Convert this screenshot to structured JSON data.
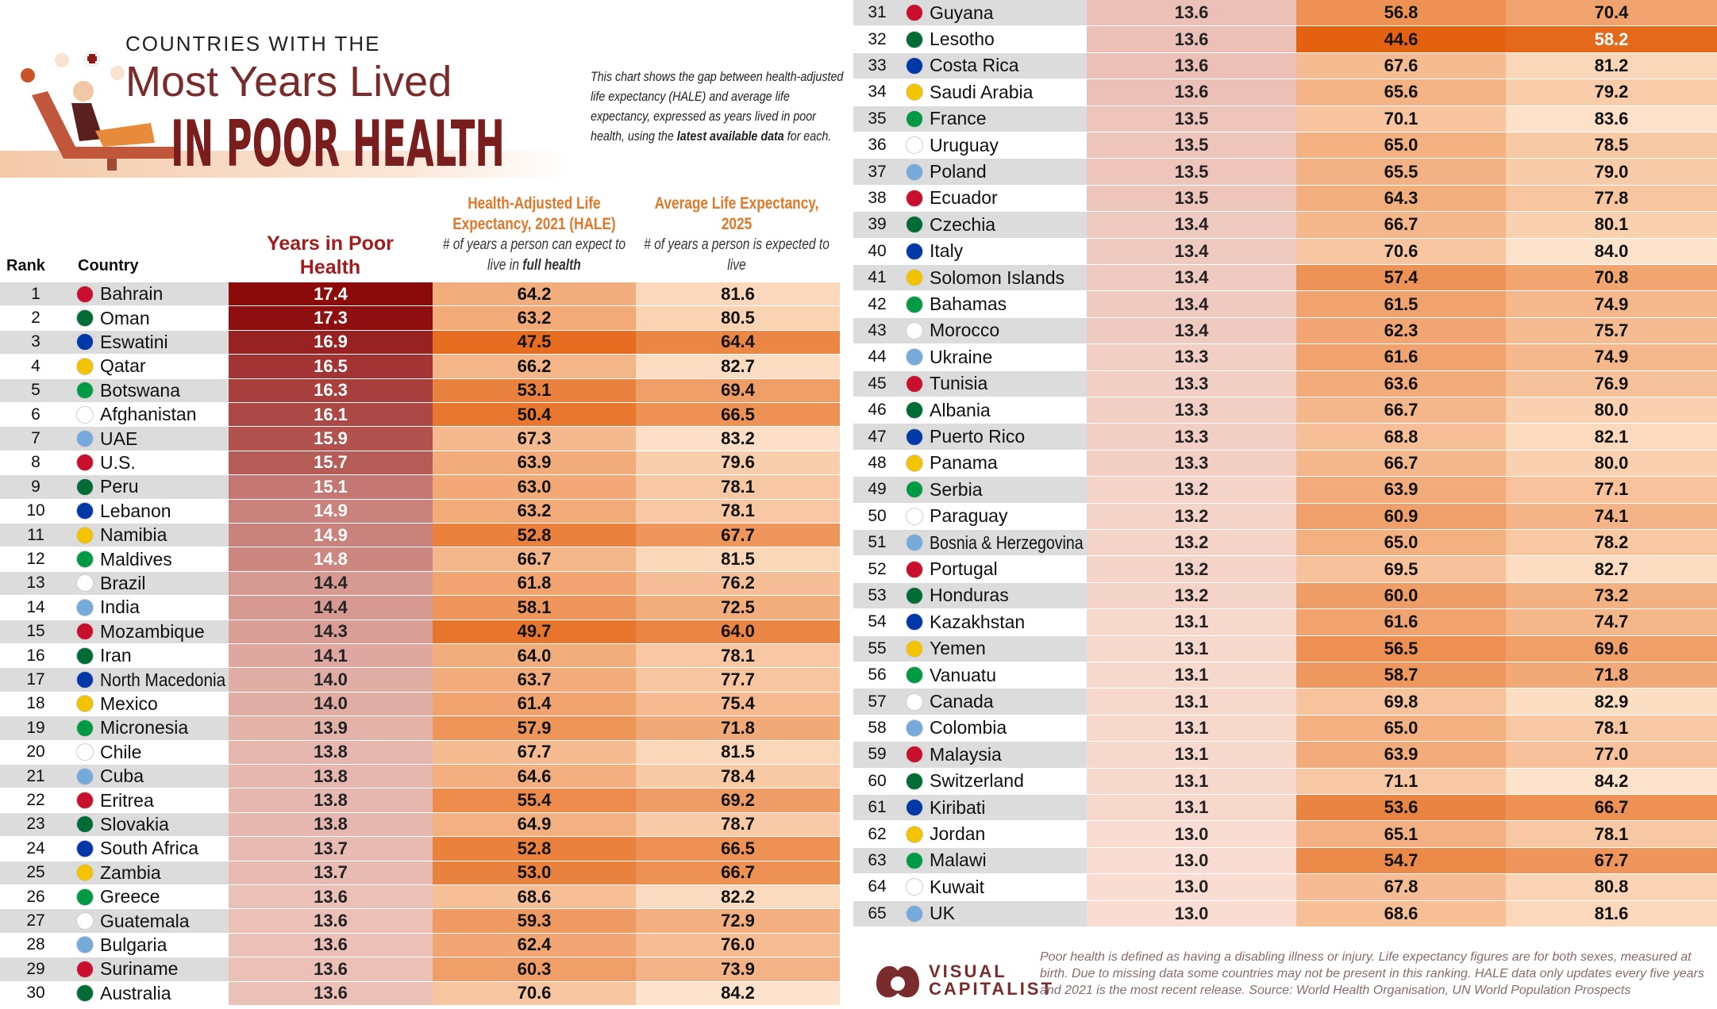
{
  "header": {
    "pretitle": "COUNTRIES WITH THE",
    "title_line1": "Most Years Lived",
    "title_line2": "IN POOR HEALTH",
    "intro_a": "This chart shows the gap between health-adjusted life expectancy (HALE) and average life expectancy, expressed as years lived in poor health, using the ",
    "intro_bold": "latest available data",
    "intro_b": " for each."
  },
  "chart_data": {
    "type": "table",
    "title": "Countries With the Most Years Lived in Poor Health",
    "columns": {
      "rank": "Rank",
      "country": "Country",
      "poor": "Years in Poor Health",
      "hale": "Health-Adjusted Life Expectancy, 2021 (HALE)",
      "hale_sub_a": "# of years a person can expect to live in ",
      "hale_sub_bold": "full health",
      "avg": "Average Life Expectancy, 2025",
      "avg_sub": "# of years a person is expected to live"
    },
    "rows": [
      [
        1,
        "Bahrain",
        17.4,
        64.2,
        81.6
      ],
      [
        2,
        "Oman",
        17.3,
        63.2,
        80.5
      ],
      [
        3,
        "Eswatini",
        16.9,
        47.5,
        64.4
      ],
      [
        4,
        "Qatar",
        16.5,
        66.2,
        82.7
      ],
      [
        5,
        "Botswana",
        16.3,
        53.1,
        69.4
      ],
      [
        6,
        "Afghanistan",
        16.1,
        50.4,
        66.5
      ],
      [
        7,
        "UAE",
        15.9,
        67.3,
        83.2
      ],
      [
        8,
        "U.S.",
        15.7,
        63.9,
        79.6
      ],
      [
        9,
        "Peru",
        15.1,
        63.0,
        78.1
      ],
      [
        10,
        "Lebanon",
        14.9,
        63.2,
        78.1
      ],
      [
        11,
        "Namibia",
        14.9,
        52.8,
        67.7
      ],
      [
        12,
        "Maldives",
        14.8,
        66.7,
        81.5
      ],
      [
        13,
        "Brazil",
        14.4,
        61.8,
        76.2
      ],
      [
        14,
        "India",
        14.4,
        58.1,
        72.5
      ],
      [
        15,
        "Mozambique",
        14.3,
        49.7,
        64.0
      ],
      [
        16,
        "Iran",
        14.1,
        64.0,
        78.1
      ],
      [
        17,
        "North Macedonia",
        14.0,
        63.7,
        77.7
      ],
      [
        18,
        "Mexico",
        14.0,
        61.4,
        75.4
      ],
      [
        19,
        "Micronesia",
        13.9,
        57.9,
        71.8
      ],
      [
        20,
        "Chile",
        13.8,
        67.7,
        81.5
      ],
      [
        21,
        "Cuba",
        13.8,
        64.6,
        78.4
      ],
      [
        22,
        "Eritrea",
        13.8,
        55.4,
        69.2
      ],
      [
        23,
        "Slovakia",
        13.8,
        64.9,
        78.7
      ],
      [
        24,
        "South Africa",
        13.7,
        52.8,
        66.5
      ],
      [
        25,
        "Zambia",
        13.7,
        53.0,
        66.7
      ],
      [
        26,
        "Greece",
        13.6,
        68.6,
        82.2
      ],
      [
        27,
        "Guatemala",
        13.6,
        59.3,
        72.9
      ],
      [
        28,
        "Bulgaria",
        13.6,
        62.4,
        76.0
      ],
      [
        29,
        "Suriname",
        13.6,
        60.3,
        73.9
      ],
      [
        30,
        "Australia",
        13.6,
        70.6,
        84.2
      ],
      [
        31,
        "Guyana",
        13.6,
        56.8,
        70.4
      ],
      [
        32,
        "Lesotho",
        13.6,
        44.6,
        58.2
      ],
      [
        33,
        "Costa Rica",
        13.6,
        67.6,
        81.2
      ],
      [
        34,
        "Saudi Arabia",
        13.6,
        65.6,
        79.2
      ],
      [
        35,
        "France",
        13.5,
        70.1,
        83.6
      ],
      [
        36,
        "Uruguay",
        13.5,
        65.0,
        78.5
      ],
      [
        37,
        "Poland",
        13.5,
        65.5,
        79.0
      ],
      [
        38,
        "Ecuador",
        13.5,
        64.3,
        77.8
      ],
      [
        39,
        "Czechia",
        13.4,
        66.7,
        80.1
      ],
      [
        40,
        "Italy",
        13.4,
        70.6,
        84.0
      ],
      [
        41,
        "Solomon Islands",
        13.4,
        57.4,
        70.8
      ],
      [
        42,
        "Bahamas",
        13.4,
        61.5,
        74.9
      ],
      [
        43,
        "Morocco",
        13.4,
        62.3,
        75.7
      ],
      [
        44,
        "Ukraine",
        13.3,
        61.6,
        74.9
      ],
      [
        45,
        "Tunisia",
        13.3,
        63.6,
        76.9
      ],
      [
        46,
        "Albania",
        13.3,
        66.7,
        80.0
      ],
      [
        47,
        "Puerto Rico",
        13.3,
        68.8,
        82.1
      ],
      [
        48,
        "Panama",
        13.3,
        66.7,
        80.0
      ],
      [
        49,
        "Serbia",
        13.2,
        63.9,
        77.1
      ],
      [
        50,
        "Paraguay",
        13.2,
        60.9,
        74.1
      ],
      [
        51,
        "Bosnia & Herzegovina",
        13.2,
        65.0,
        78.2
      ],
      [
        52,
        "Portugal",
        13.2,
        69.5,
        82.7
      ],
      [
        53,
        "Honduras",
        13.2,
        60.0,
        73.2
      ],
      [
        54,
        "Kazakhstan",
        13.1,
        61.6,
        74.7
      ],
      [
        55,
        "Yemen",
        13.1,
        56.5,
        69.6
      ],
      [
        56,
        "Vanuatu",
        13.1,
        58.7,
        71.8
      ],
      [
        57,
        "Canada",
        13.1,
        69.8,
        82.9
      ],
      [
        58,
        "Colombia",
        13.1,
        65.0,
        78.1
      ],
      [
        59,
        "Malaysia",
        13.1,
        63.9,
        77.0
      ],
      [
        60,
        "Switzerland",
        13.1,
        71.1,
        84.2
      ],
      [
        61,
        "Kiribati",
        13.1,
        53.6,
        66.7
      ],
      [
        62,
        "Jordan",
        13.0,
        65.1,
        78.1
      ],
      [
        63,
        "Malawi",
        13.0,
        54.7,
        67.7
      ],
      [
        64,
        "Kuwait",
        13.0,
        67.8,
        80.8
      ],
      [
        65,
        "UK",
        13.0,
        68.6,
        81.6
      ]
    ]
  },
  "footer": {
    "note": "Poor health is defined as having a disabling illness or injury. Life expectancy figures are for both sexes, measured at birth. Due to missing data some countries may not be present in this ranking. HALE data only updates every five years and 2021 is the most recent release. Source: World Health Organisation, UN World Population Prospects",
    "logo_line1": "VISUAL",
    "logo_line2": "CAPITALIST"
  },
  "colors": {
    "poor_high": "#8b0a0a",
    "poor_low": "#f9ddd2",
    "orange_dark": "#e35f0c",
    "orange_light": "#fde3cb",
    "row_alt": "#dcdcdc"
  }
}
